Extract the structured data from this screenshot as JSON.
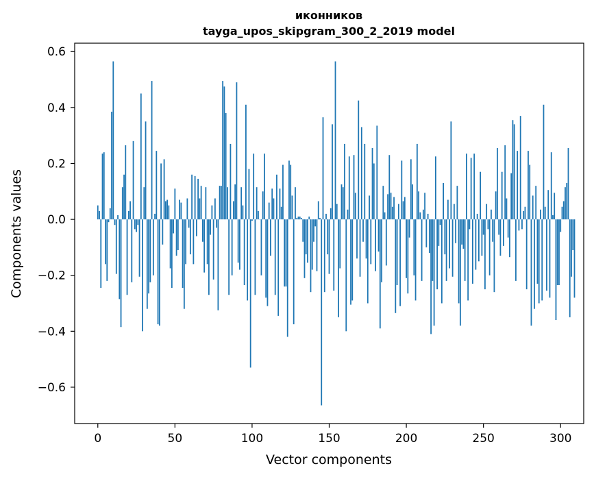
{
  "chart_data": {
    "type": "bar",
    "title": "иконников",
    "subtitle": "tayga_upos_skipgram_300_2_2019 model",
    "xlabel": "Vector components",
    "ylabel": "Components values",
    "xlim": [
      -15,
      315
    ],
    "ylim": [
      -0.73,
      0.63
    ],
    "xticks": [
      0,
      50,
      100,
      150,
      200,
      250,
      300
    ],
    "xtick_labels": [
      "0",
      "50",
      "100",
      "150",
      "200",
      "250",
      "300"
    ],
    "yticks": [
      -0.6,
      -0.4,
      -0.2,
      0.0,
      0.2,
      0.4,
      0.6
    ],
    "ytick_labels": [
      "−0.6",
      "−0.4",
      "−0.2",
      "0.0",
      "0.2",
      "0.4",
      "0.6"
    ],
    "grid": false,
    "bar_color": "#1f77b4",
    "values": [
      0.05,
      0.03,
      -0.245,
      0.235,
      0.24,
      -0.16,
      -0.22,
      -0.01,
      0.04,
      0.385,
      0.565,
      -0.02,
      -0.195,
      0.015,
      -0.285,
      -0.385,
      0.115,
      0.16,
      0.265,
      -0.27,
      0.03,
      0.065,
      -0.225,
      0.28,
      -0.035,
      -0.045,
      -0.02,
      -0.205,
      0.45,
      -0.4,
      0.115,
      0.35,
      -0.32,
      -0.265,
      -0.225,
      0.495,
      -0.2,
      0.02,
      0.245,
      -0.375,
      -0.38,
      0.2,
      -0.09,
      0.215,
      0.065,
      0.07,
      0.05,
      -0.175,
      -0.245,
      -0.05,
      0.11,
      -0.13,
      -0.11,
      0.07,
      0.06,
      -0.245,
      -0.32,
      -0.16,
      0.075,
      -0.03,
      -0.125,
      0.16,
      -0.16,
      0.155,
      -0.06,
      0.145,
      0.075,
      0.12,
      -0.08,
      -0.19,
      0.115,
      -0.16,
      -0.27,
      -0.055,
      0.05,
      -0.215,
      0.075,
      -0.03,
      -0.325,
      0.12,
      0.12,
      0.495,
      0.475,
      0.38,
      0.115,
      -0.27,
      0.27,
      -0.2,
      0.065,
      0.125,
      0.49,
      -0.155,
      -0.18,
      0.115,
      0.05,
      -0.235,
      0.41,
      -0.29,
      0.18,
      -0.53,
      -0.005,
      0.235,
      -0.27,
      0.115,
      0.03,
      0.0,
      -0.2,
      0.1,
      0.235,
      -0.28,
      -0.31,
      0.06,
      -0.13,
      0.11,
      0.075,
      -0.27,
      0.16,
      -0.345,
      0.11,
      0.045,
      0.195,
      -0.24,
      -0.24,
      -0.42,
      0.21,
      0.195,
      0.085,
      -0.375,
      0.115,
      0.005,
      0.01,
      0.01,
      0.005,
      -0.08,
      -0.21,
      -0.125,
      -0.155,
      0.01,
      -0.26,
      -0.18,
      -0.08,
      -0.025,
      -0.185,
      0.065,
      0.005,
      -0.665,
      0.365,
      -0.26,
      0.02,
      -0.125,
      -0.195,
      0.04,
      0.34,
      -0.255,
      0.565,
      0.055,
      -0.35,
      -0.175,
      0.125,
      0.115,
      0.27,
      -0.4,
      0.035,
      0.225,
      -0.305,
      -0.29,
      0.23,
      0.095,
      -0.14,
      0.425,
      -0.205,
      0.33,
      -0.08,
      0.27,
      -0.14,
      -0.3,
      0.085,
      -0.16,
      0.255,
      0.2,
      -0.185,
      0.335,
      -0.115,
      -0.39,
      -0.225,
      0.12,
      0.025,
      -0.165,
      0.09,
      0.23,
      0.095,
      0.045,
      0.08,
      -0.335,
      -0.235,
      0.055,
      -0.31,
      0.21,
      0.065,
      0.08,
      -0.21,
      -0.265,
      -0.065,
      0.215,
      0.125,
      -0.2,
      -0.29,
      0.27,
      0.1,
      0.025,
      -0.22,
      0.035,
      0.095,
      -0.1,
      0.02,
      -0.12,
      -0.41,
      -0.22,
      -0.38,
      0.225,
      -0.25,
      -0.095,
      -0.02,
      -0.3,
      0.13,
      -0.125,
      -0.22,
      0.07,
      -0.175,
      0.35,
      -0.205,
      0.055,
      -0.085,
      0.12,
      -0.3,
      -0.38,
      -0.09,
      -0.105,
      -0.22,
      0.235,
      -0.29,
      -0.035,
      0.22,
      -0.23,
      0.235,
      -0.18,
      0.02,
      -0.15,
      0.17,
      -0.13,
      -0.055,
      -0.25,
      0.055,
      -0.035,
      -0.2,
      0.035,
      -0.08,
      -0.26,
      0.1,
      0.255,
      -0.055,
      -0.13,
      0.17,
      -0.095,
      0.265,
      0.075,
      -0.065,
      -0.135,
      0.165,
      0.355,
      0.34,
      -0.22,
      0.245,
      -0.04,
      0.37,
      -0.035,
      0.03,
      0.045,
      -0.25,
      0.245,
      0.195,
      -0.38,
      0.085,
      -0.32,
      0.12,
      -0.23,
      -0.3,
      0.035,
      -0.29,
      0.41,
      0.045,
      -0.255,
      0.105,
      -0.28,
      0.24,
      0.015,
      0.095,
      -0.36,
      -0.235,
      -0.235,
      -0.045,
      0.045,
      0.065,
      0.115,
      0.13,
      0.255,
      -0.35,
      -0.205,
      -0.11,
      -0.28
    ]
  }
}
